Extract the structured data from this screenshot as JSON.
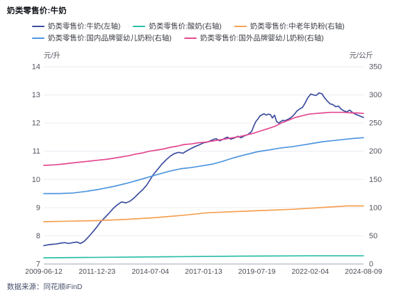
{
  "title": "奶类零售价:牛奶",
  "source": "数据来源：同花顺iFinD",
  "colors": {
    "grid": "#ececf4",
    "axis_line": "#a0a4b2",
    "tick_text": "#53555f",
    "date_text": "#4a4c55"
  },
  "chart_data": {
    "type": "line",
    "title": "奶类零售价:牛奶",
    "left_axis": {
      "unit": "元/升",
      "min": 7,
      "max": 14,
      "ticks": [
        14,
        13,
        12,
        11,
        10,
        9,
        8,
        7
      ]
    },
    "right_axis": {
      "unit": "元/公斤",
      "min": 0,
      "max": 350,
      "ticks": [
        350,
        300,
        250,
        200,
        150,
        100,
        50,
        0
      ]
    },
    "x_ticks": [
      "2009-06-12",
      "2011-12-23",
      "2014-07-04",
      "2017-01-13",
      "2019-07-19",
      "2022-02-04",
      "2024-08-09"
    ],
    "grid": true,
    "legend_position": "top",
    "series": [
      {
        "name": "奶类零售价:牛奶(左轴)",
        "axis": "left",
        "color": "#3b4d9e",
        "points": [
          [
            0,
            7.65
          ],
          [
            0.013,
            7.68
          ],
          [
            0.026,
            7.7
          ],
          [
            0.039,
            7.71
          ],
          [
            0.052,
            7.74
          ],
          [
            0.065,
            7.76
          ],
          [
            0.078,
            7.73
          ],
          [
            0.091,
            7.76
          ],
          [
            0.104,
            7.78
          ],
          [
            0.115,
            7.73
          ],
          [
            0.126,
            7.8
          ],
          [
            0.139,
            7.95
          ],
          [
            0.152,
            8.12
          ],
          [
            0.165,
            8.3
          ],
          [
            0.178,
            8.5
          ],
          [
            0.191,
            8.65
          ],
          [
            0.204,
            8.8
          ],
          [
            0.217,
            8.97
          ],
          [
            0.23,
            9.1
          ],
          [
            0.243,
            9.2
          ],
          [
            0.257,
            9.17
          ],
          [
            0.27,
            9.23
          ],
          [
            0.283,
            9.35
          ],
          [
            0.296,
            9.5
          ],
          [
            0.309,
            9.63
          ],
          [
            0.322,
            9.8
          ],
          [
            0.333,
            10
          ],
          [
            0.343,
            10.18
          ],
          [
            0.357,
            10.37
          ],
          [
            0.37,
            10.55
          ],
          [
            0.383,
            10.7
          ],
          [
            0.396,
            10.83
          ],
          [
            0.409,
            10.92
          ],
          [
            0.422,
            10.96
          ],
          [
            0.435,
            10.93
          ],
          [
            0.448,
            11.02
          ],
          [
            0.461,
            11.1
          ],
          [
            0.474,
            11.17
          ],
          [
            0.487,
            11.23
          ],
          [
            0.5,
            11.3
          ],
          [
            0.513,
            11.33
          ],
          [
            0.526,
            11.4
          ],
          [
            0.539,
            11.45
          ],
          [
            0.55,
            11.37
          ],
          [
            0.561,
            11.43
          ],
          [
            0.574,
            11.5
          ],
          [
            0.585,
            11.43
          ],
          [
            0.596,
            11.47
          ],
          [
            0.607,
            11.53
          ],
          [
            0.617,
            11.48
          ],
          [
            0.628,
            11.55
          ],
          [
            0.639,
            11.6
          ],
          [
            0.65,
            11.7
          ],
          [
            0.657,
            11.9
          ],
          [
            0.663,
            12.05
          ],
          [
            0.67,
            12.15
          ],
          [
            0.676,
            12.25
          ],
          [
            0.683,
            12.3
          ],
          [
            0.689,
            12.33
          ],
          [
            0.696,
            12.28
          ],
          [
            0.702,
            12.32
          ],
          [
            0.709,
            12.3
          ],
          [
            0.715,
            12.18
          ],
          [
            0.722,
            12.28
          ],
          [
            0.728,
            12.06
          ],
          [
            0.735,
            12
          ],
          [
            0.741,
            12.05
          ],
          [
            0.748,
            12.1
          ],
          [
            0.754,
            12.08
          ],
          [
            0.761,
            12.12
          ],
          [
            0.767,
            12.15
          ],
          [
            0.774,
            12.2
          ],
          [
            0.783,
            12.3
          ],
          [
            0.791,
            12.42
          ],
          [
            0.8,
            12.5
          ],
          [
            0.809,
            12.55
          ],
          [
            0.817,
            12.7
          ],
          [
            0.826,
            12.9
          ],
          [
            0.835,
            13.03
          ],
          [
            0.843,
            13
          ],
          [
            0.852,
            12.98
          ],
          [
            0.861,
            13.07
          ],
          [
            0.87,
            13.04
          ],
          [
            0.878,
            12.9
          ],
          [
            0.887,
            12.78
          ],
          [
            0.896,
            12.68
          ],
          [
            0.904,
            12.66
          ],
          [
            0.913,
            12.58
          ],
          [
            0.922,
            12.6
          ],
          [
            0.93,
            12.5
          ],
          [
            0.939,
            12.43
          ],
          [
            0.948,
            12.4
          ],
          [
            0.957,
            12.46
          ],
          [
            0.965,
            12.38
          ],
          [
            0.974,
            12.32
          ],
          [
            0.983,
            12.28
          ],
          [
            0.991,
            12.24
          ],
          [
            1,
            12.2
          ]
        ]
      },
      {
        "name": "奶类零售价:酸奶(右轴)",
        "axis": "right",
        "color": "#2bbea9",
        "points": [
          [
            0,
            11
          ],
          [
            0.2,
            12
          ],
          [
            0.4,
            13
          ],
          [
            0.62,
            14
          ],
          [
            0.84,
            14.5
          ],
          [
            1,
            14.5
          ]
        ]
      },
      {
        "name": "奶类零售价:中老年奶粉(右轴)",
        "axis": "right",
        "color": "#f6a052",
        "points": [
          [
            0,
            75
          ],
          [
            0.08,
            76
          ],
          [
            0.167,
            77
          ],
          [
            0.254,
            79
          ],
          [
            0.341,
            82
          ],
          [
            0.428,
            86
          ],
          [
            0.515,
            91
          ],
          [
            0.602,
            93
          ],
          [
            0.689,
            95
          ],
          [
            0.776,
            97
          ],
          [
            0.863,
            100
          ],
          [
            0.95,
            103
          ],
          [
            1,
            103
          ]
        ]
      },
      {
        "name": "奶类零售价:国内品牌婴幼儿奶粉(右轴)",
        "axis": "right",
        "color": "#4d95de",
        "points": [
          [
            0,
            125
          ],
          [
            0.048,
            125
          ],
          [
            0.091,
            126
          ],
          [
            0.135,
            129
          ],
          [
            0.178,
            133
          ],
          [
            0.222,
            138
          ],
          [
            0.265,
            144
          ],
          [
            0.309,
            151
          ],
          [
            0.333,
            155
          ],
          [
            0.363,
            160
          ],
          [
            0.396,
            165
          ],
          [
            0.428,
            169
          ],
          [
            0.461,
            171
          ],
          [
            0.493,
            174
          ],
          [
            0.526,
            177
          ],
          [
            0.559,
            182
          ],
          [
            0.591,
            188
          ],
          [
            0.624,
            193
          ],
          [
            0.646,
            196
          ],
          [
            0.667,
            199
          ],
          [
            0.689,
            201
          ],
          [
            0.711,
            203
          ],
          [
            0.743,
            206
          ],
          [
            0.776,
            208
          ],
          [
            0.809,
            211
          ],
          [
            0.841,
            214
          ],
          [
            0.874,
            217
          ],
          [
            0.907,
            219
          ],
          [
            0.939,
            221
          ],
          [
            0.972,
            223
          ],
          [
            1,
            224
          ]
        ]
      },
      {
        "name": "奶类零售价:国外品牌婴幼儿奶粉(右轴)",
        "axis": "right",
        "color": "#e3478e",
        "points": [
          [
            0,
            175
          ],
          [
            0.037,
            176
          ],
          [
            0.07,
            178
          ],
          [
            0.102,
            180
          ],
          [
            0.135,
            182
          ],
          [
            0.167,
            184
          ],
          [
            0.2,
            186
          ],
          [
            0.233,
            189
          ],
          [
            0.265,
            192
          ],
          [
            0.287,
            195
          ],
          [
            0.309,
            197
          ],
          [
            0.33,
            200
          ],
          [
            0.352,
            202
          ],
          [
            0.374,
            204
          ],
          [
            0.396,
            207
          ],
          [
            0.417,
            209
          ],
          [
            0.439,
            212
          ],
          [
            0.461,
            213
          ],
          [
            0.483,
            215
          ],
          [
            0.504,
            216
          ],
          [
            0.526,
            218
          ],
          [
            0.548,
            220
          ],
          [
            0.57,
            222
          ],
          [
            0.591,
            224
          ],
          [
            0.613,
            226
          ],
          [
            0.635,
            229
          ],
          [
            0.657,
            232
          ],
          [
            0.678,
            236
          ],
          [
            0.7,
            240
          ],
          [
            0.722,
            244
          ],
          [
            0.743,
            250
          ],
          [
            0.765,
            255
          ],
          [
            0.787,
            260
          ],
          [
            0.809,
            263
          ],
          [
            0.83,
            266
          ],
          [
            0.852,
            267
          ],
          [
            0.874,
            268
          ],
          [
            0.896,
            269
          ],
          [
            0.917,
            269
          ],
          [
            0.939,
            269
          ],
          [
            0.961,
            268
          ],
          [
            0.98,
            268
          ],
          [
            1,
            267
          ]
        ]
      }
    ]
  }
}
